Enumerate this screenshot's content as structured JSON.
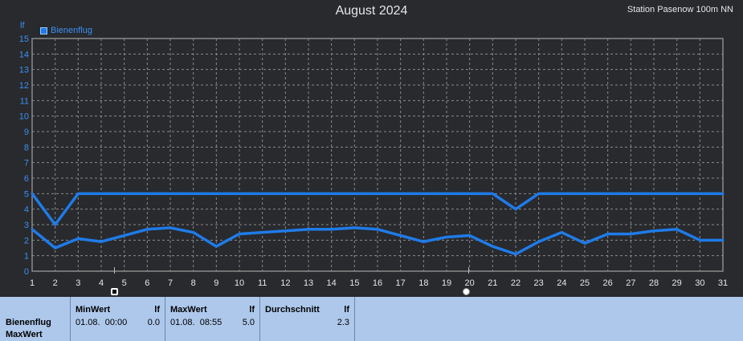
{
  "header": {
    "title": "August 2024",
    "station": "Station Pasenow 100m NN",
    "unit": "lf"
  },
  "legend": {
    "label": "Bienenflug",
    "color": "#1f7be8"
  },
  "colors": {
    "background": "#282a2e",
    "grid": "#8a8a8a",
    "series": "#1f7be8",
    "axis_text": "#3d8ff0",
    "stats_bg": "#aec8ec"
  },
  "markers": [
    {
      "type": "new-moon",
      "day": 4.5
    },
    {
      "type": "full-moon",
      "day": 19.9
    }
  ],
  "chart_data": {
    "type": "line",
    "title": "August 2024",
    "ylabel": "lf",
    "xlim": [
      1,
      31
    ],
    "ylim": [
      0,
      15
    ],
    "x_ticks": [
      1,
      2,
      3,
      4,
      5,
      6,
      7,
      8,
      9,
      10,
      11,
      12,
      13,
      14,
      15,
      16,
      17,
      18,
      19,
      20,
      21,
      22,
      23,
      24,
      25,
      26,
      27,
      28,
      29,
      30,
      31
    ],
    "y_ticks": [
      0,
      1,
      2,
      3,
      4,
      5,
      6,
      7,
      8,
      9,
      10,
      11,
      12,
      13,
      14,
      15
    ],
    "grid": true,
    "legend_position": "top-left",
    "series": [
      {
        "name": "Bienenflug",
        "role": "max",
        "x": [
          1,
          2,
          3,
          4,
          5,
          6,
          7,
          8,
          9,
          10,
          11,
          12,
          13,
          14,
          15,
          16,
          17,
          18,
          19,
          20,
          21,
          22,
          23,
          24,
          25,
          26,
          27,
          28,
          29,
          30,
          31
        ],
        "values": [
          5,
          3,
          5,
          5,
          5,
          5,
          5,
          5,
          5,
          5,
          5,
          5,
          5,
          5,
          5,
          5,
          5,
          5,
          5,
          5,
          5,
          4,
          5,
          5,
          5,
          5,
          5,
          5,
          5,
          5,
          5
        ]
      },
      {
        "name": "Bienenflug",
        "role": "mean",
        "x": [
          1,
          2,
          3,
          4,
          5,
          6,
          7,
          8,
          9,
          10,
          11,
          12,
          13,
          14,
          15,
          16,
          17,
          18,
          19,
          20,
          21,
          22,
          23,
          24,
          25,
          26,
          27,
          28,
          29,
          30,
          31
        ],
        "values": [
          2.7,
          1.5,
          2.1,
          1.9,
          2.3,
          2.7,
          2.8,
          2.5,
          1.6,
          2.4,
          2.5,
          2.6,
          2.7,
          2.7,
          2.8,
          2.7,
          2.3,
          1.9,
          2.2,
          2.3,
          1.6,
          1.1,
          1.9,
          2.5,
          1.8,
          2.4,
          2.4,
          2.6,
          2.7,
          2.0,
          2.0
        ]
      }
    ]
  },
  "stats": {
    "row_label_1": "Bienenflug",
    "row_label_2": "MaxWert",
    "min": {
      "header": "MinWert",
      "unit": "lf",
      "date": "01.08.  00:00",
      "value": "0.0"
    },
    "max": {
      "header": "MaxWert",
      "unit": "lf",
      "date": "01.08.  08:55",
      "value": "5.0"
    },
    "avg": {
      "header": "Durchschnitt",
      "unit": "lf",
      "value": "2.3"
    }
  }
}
